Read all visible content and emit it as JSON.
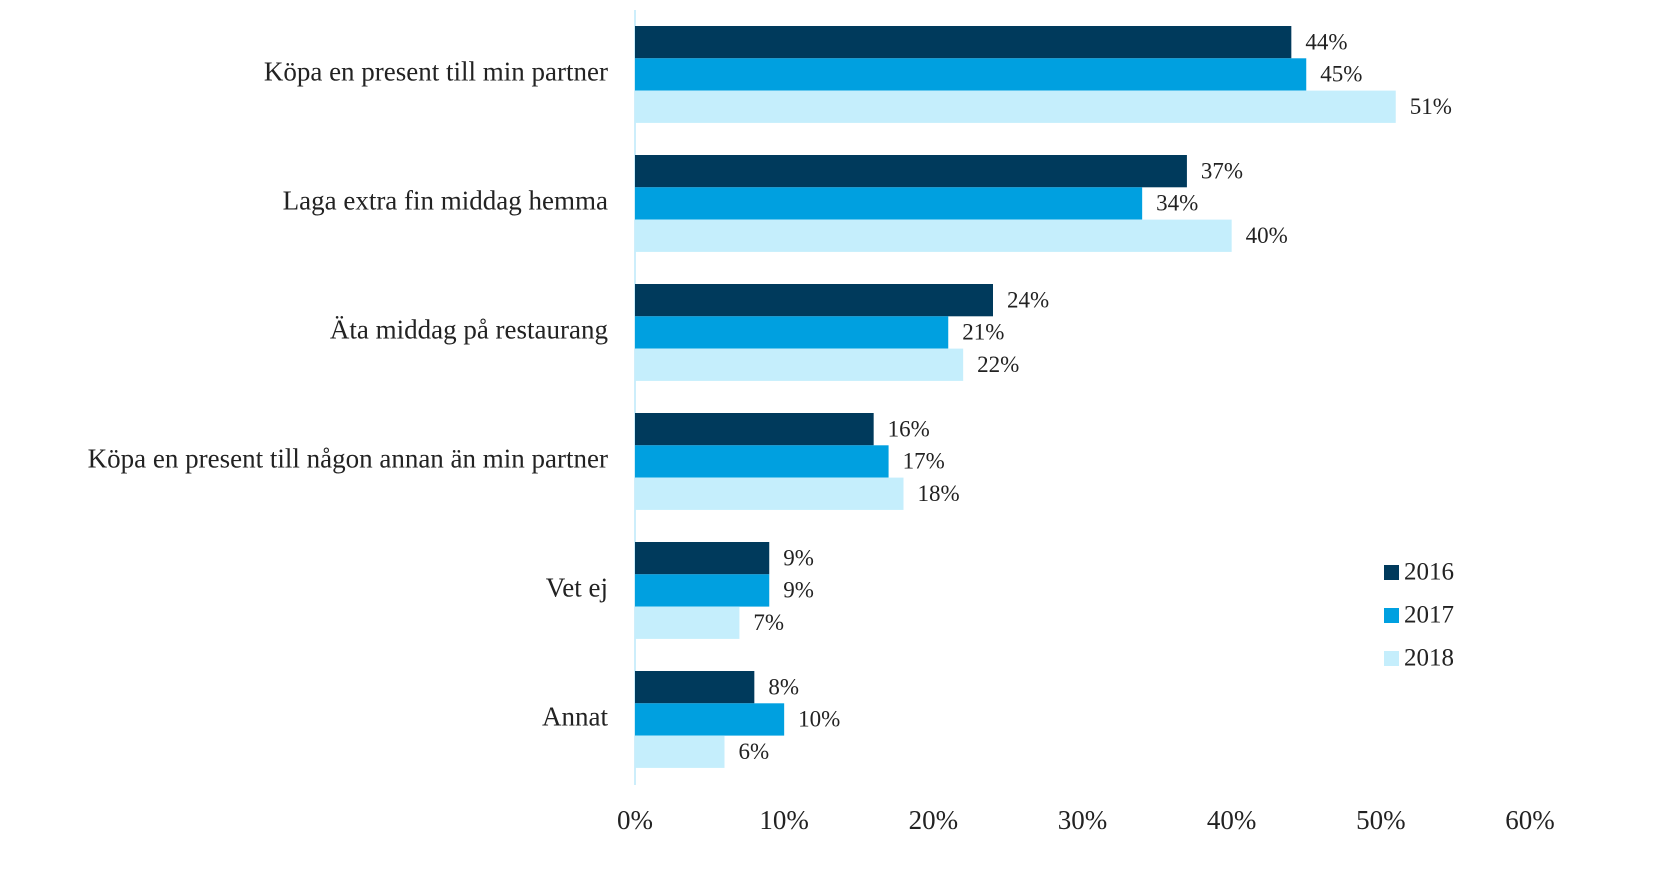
{
  "chart_data": {
    "type": "barh",
    "categories": [
      "Köpa en present till min partner",
      "Laga extra fin middag hemma",
      "Äta middag på restaurang",
      "Köpa en present till någon annan än min partner",
      "Vet ej",
      "Annat"
    ],
    "series": [
      {
        "name": "2016",
        "color": "#003a5c",
        "values": [
          44,
          37,
          24,
          16,
          9,
          8
        ],
        "value_labels": [
          "44%",
          "37%",
          "24%",
          "16%",
          "9%",
          "8%"
        ]
      },
      {
        "name": "2017",
        "color": "#00a0e0",
        "values": [
          45,
          34,
          21,
          17,
          9,
          10
        ],
        "value_labels": [
          "45%",
          "34%",
          "21%",
          "17%",
          "9%",
          "10%"
        ]
      },
      {
        "name": "2018",
        "color": "#c5eefc",
        "values": [
          51,
          40,
          22,
          18,
          7,
          6
        ],
        "value_labels": [
          "51%",
          "40%",
          "22%",
          "18%",
          "7%",
          "6%"
        ]
      }
    ],
    "xlim": [
      0,
      60
    ],
    "xticks": [
      {
        "value": 0,
        "label": "0%"
      },
      {
        "value": 10,
        "label": "10%"
      },
      {
        "value": 20,
        "label": "20%"
      },
      {
        "value": 30,
        "label": "30%"
      },
      {
        "value": 40,
        "label": "40%"
      },
      {
        "value": 50,
        "label": "50%"
      },
      {
        "value": 60,
        "label": "60%"
      }
    ],
    "legend": "right"
  }
}
